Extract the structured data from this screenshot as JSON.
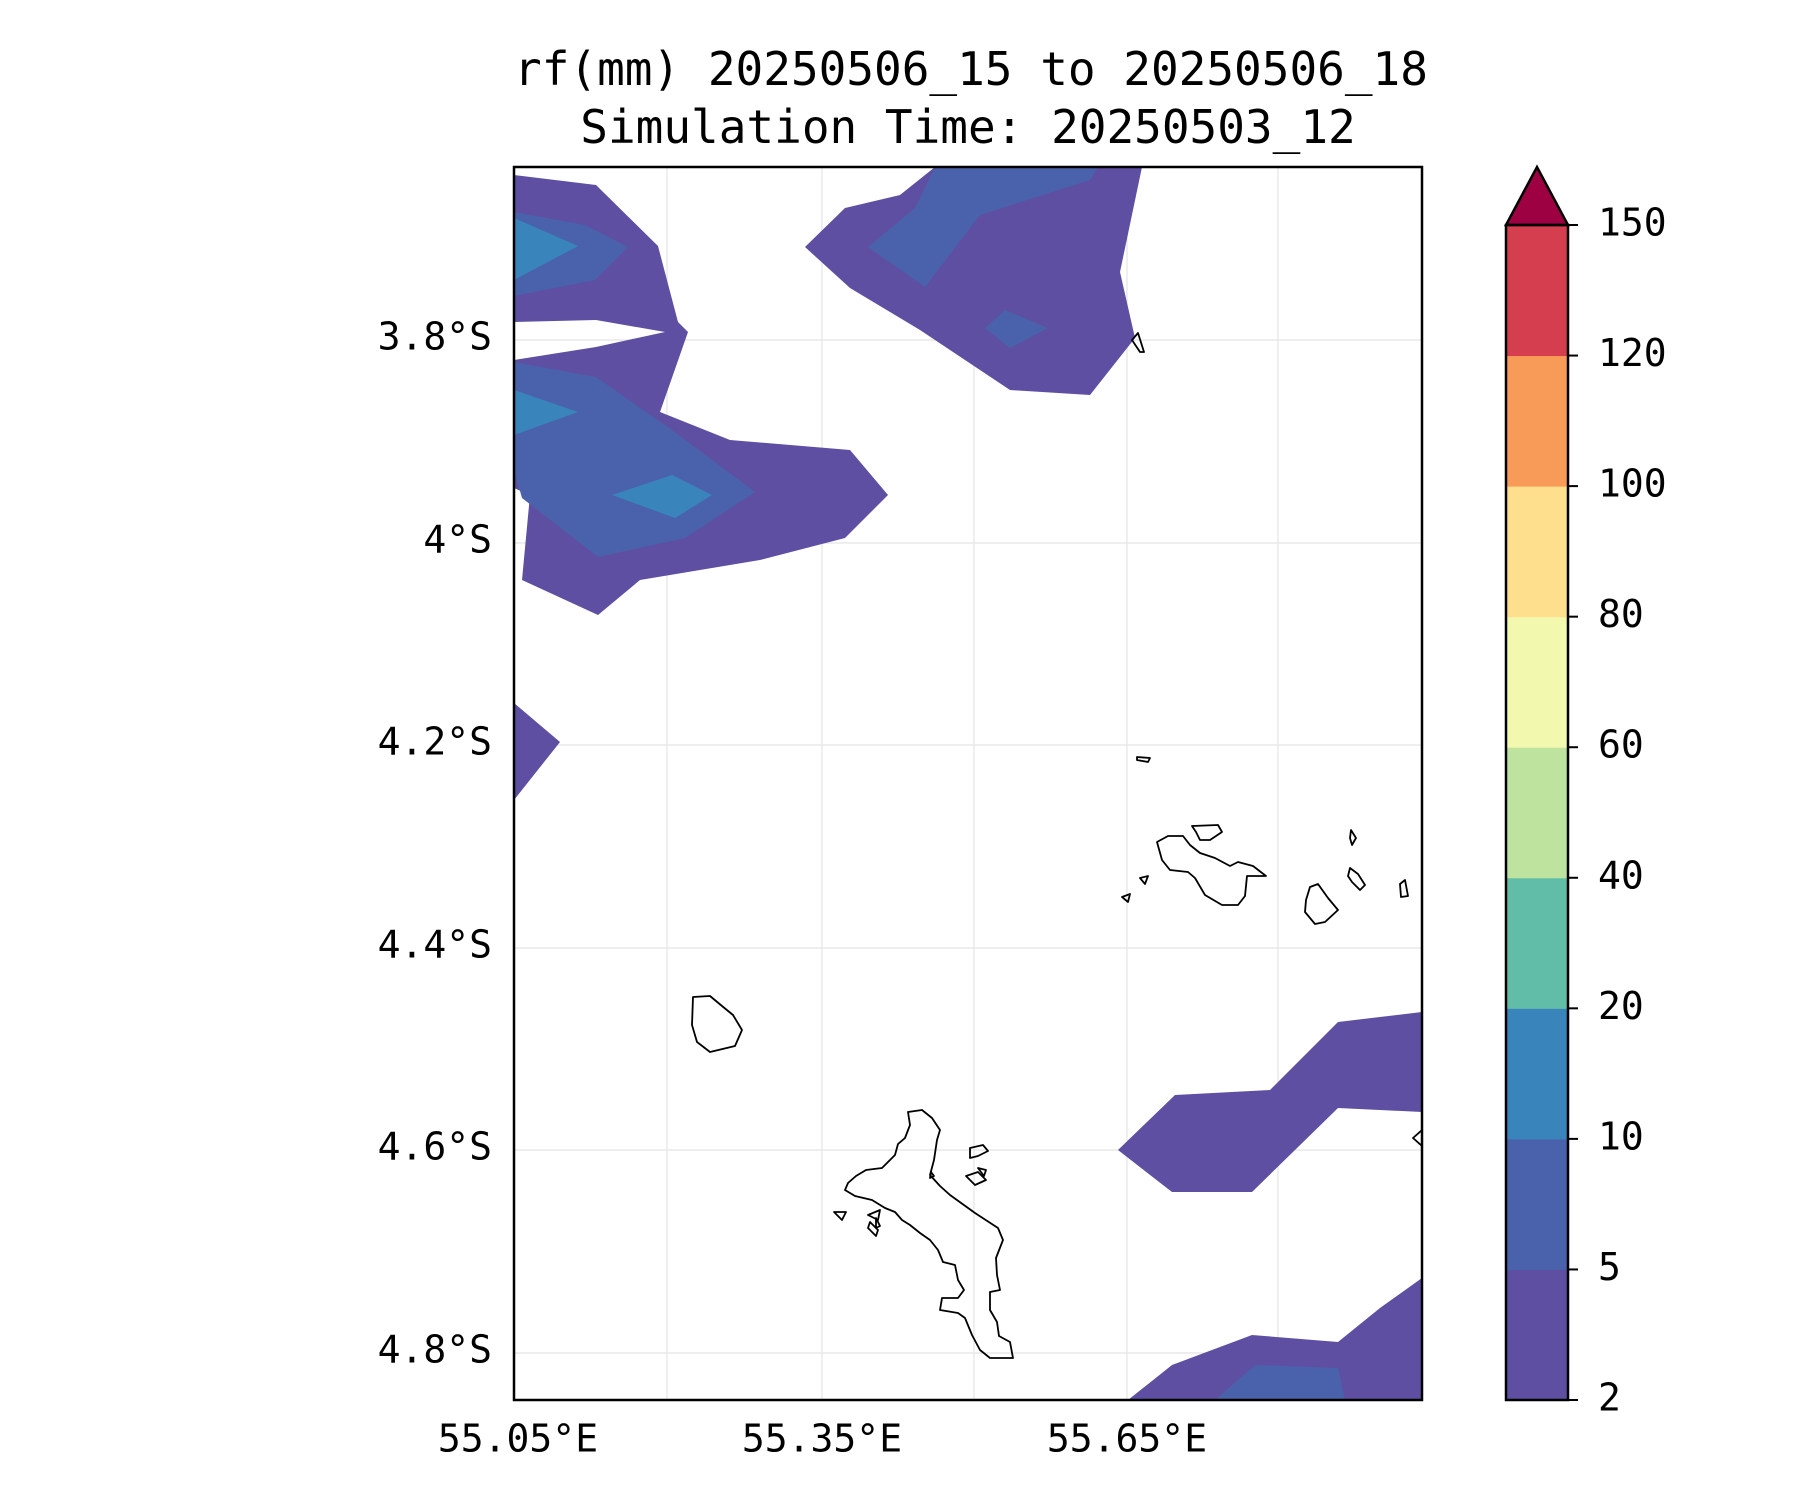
{
  "title": {
    "line1": "rf(mm) 20250506_15 to 20250506_18",
    "line2": "Simulation Time: 20250503_12"
  },
  "map": {
    "lon_ticks": [
      "55.05°E",
      "55.35°E",
      "55.65°E"
    ],
    "lat_ticks": [
      "3.8°S",
      "4°S",
      "4.2°S",
      "4.4°S",
      "4.6°S",
      "4.8°S"
    ],
    "features": [
      "rainfall-contours",
      "coastlines",
      "gridlines"
    ]
  },
  "colorbar": {
    "levels": [
      "2",
      "5",
      "10",
      "20",
      "40",
      "60",
      "80",
      "100",
      "120",
      "150"
    ],
    "colors": [
      "#5e4fa2",
      "#4a62ab",
      "#3a84bc",
      "#62bda8",
      "#bde39f",
      "#f2f9ae",
      "#fddf8d",
      "#f99b58",
      "#d53e4f"
    ],
    "extend_color": "#9e0142",
    "extend": "max"
  },
  "colors": {
    "rain_2_5": "#5e4fa2",
    "rain_5_10": "#4a62ab",
    "rain_10_20": "#3a84bc"
  }
}
